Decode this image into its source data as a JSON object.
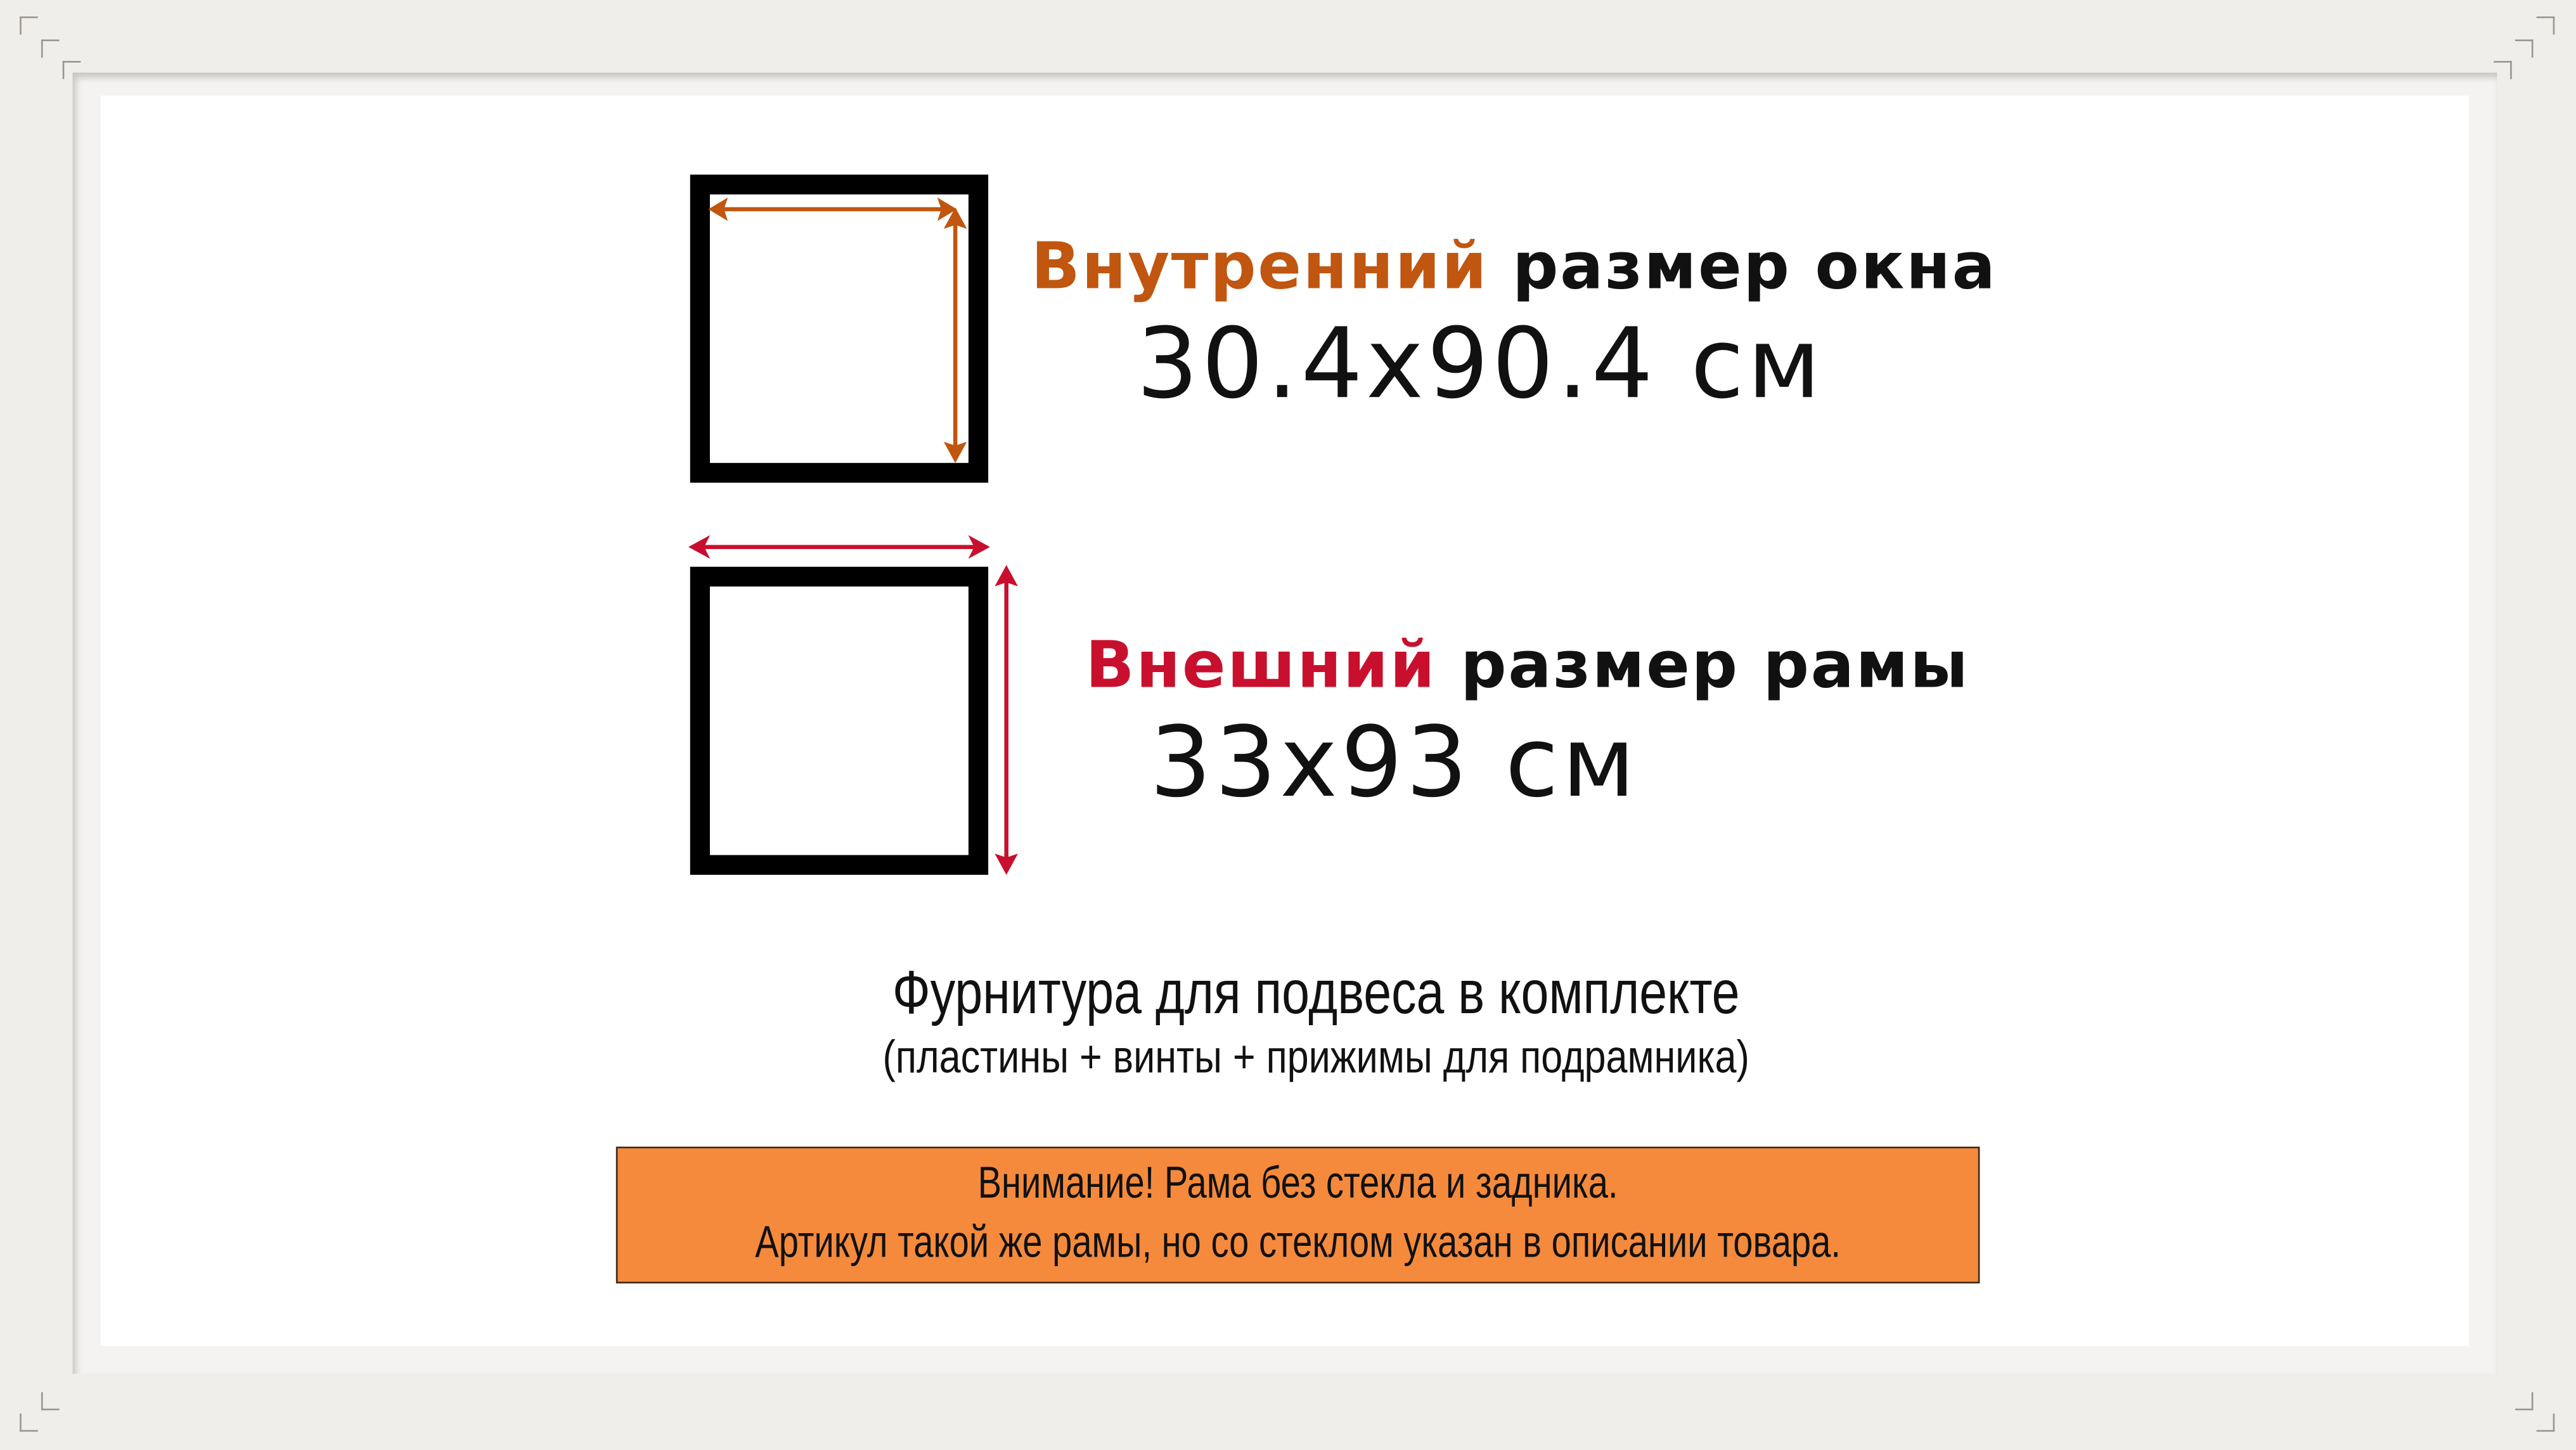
{
  "colors": {
    "inner_accent": "#c0560f",
    "outer_accent": "#c8102e",
    "notice_bg": "#f58a3c",
    "frame": "#efeeeb"
  },
  "inner": {
    "highlight": "Внутренний",
    "rest": " размер окна",
    "size": "30.4x90.4 см"
  },
  "outer": {
    "highlight": "Внешний",
    "rest": " размер рамы",
    "size": "33x93 см"
  },
  "hardware": {
    "title": "Фурнитура для подвеса в комплекте",
    "subtitle": "(пластины + винты + прижимы для подрамника)"
  },
  "notice": {
    "line1": "Внимание! Рама без стекла и задника.",
    "line2": "Артикул такой же рамы, но со стеклом указан в описании товара."
  }
}
